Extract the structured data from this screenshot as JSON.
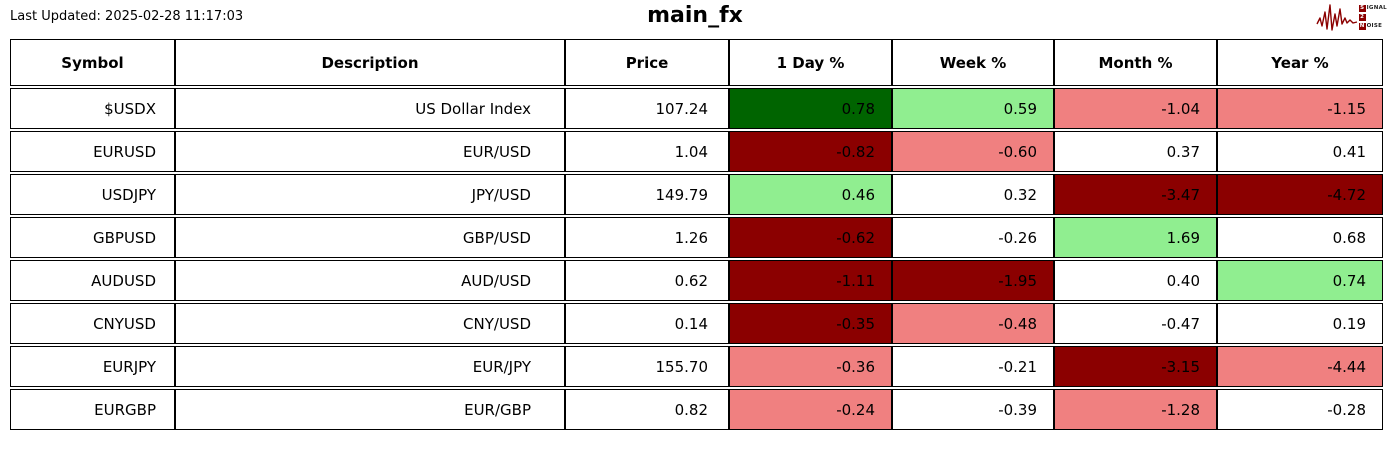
{
  "header": {
    "last_updated": "Last Updated: 2025-02-28 11:17:03",
    "title": "main_fx",
    "logo": {
      "name": "signal-2-noise",
      "color": "#8B0000",
      "lines": [
        {
          "boxed": "S",
          "rest": "IGNAL"
        },
        {
          "boxed": "2",
          "rest": ""
        },
        {
          "boxed": "N",
          "rest": "OISE"
        }
      ]
    }
  },
  "colors": {
    "dg": "#006400",
    "lg": "#90EE90",
    "lc": "#F08080",
    "dr": "#8B0000",
    "w": "#FFFFFF"
  },
  "table": {
    "columns": [
      "Symbol",
      "Description",
      "Price",
      "1 Day %",
      "Week %",
      "Month %",
      "Year %"
    ],
    "rows": [
      {
        "symbol": "$USDX",
        "description": "US Dollar Index",
        "price": "107.24",
        "changes": [
          "0.78",
          "0.59",
          "-1.04",
          "-1.15"
        ],
        "change_colors": [
          "dg",
          "lg",
          "lc",
          "lc"
        ]
      },
      {
        "symbol": "EURUSD",
        "description": "EUR/USD",
        "price": "1.04",
        "changes": [
          "-0.82",
          "-0.60",
          "0.37",
          "0.41"
        ],
        "change_colors": [
          "dr",
          "lc",
          "w",
          "w"
        ]
      },
      {
        "symbol": "USDJPY",
        "description": "JPY/USD",
        "price": "149.79",
        "changes": [
          "0.46",
          "0.32",
          "-3.47",
          "-4.72"
        ],
        "change_colors": [
          "lg",
          "w",
          "dr",
          "dr"
        ]
      },
      {
        "symbol": "GBPUSD",
        "description": "GBP/USD",
        "price": "1.26",
        "changes": [
          "-0.62",
          "-0.26",
          "1.69",
          "0.68"
        ],
        "change_colors": [
          "dr",
          "w",
          "lg",
          "w"
        ]
      },
      {
        "symbol": "AUDUSD",
        "description": "AUD/USD",
        "price": "0.62",
        "changes": [
          "-1.11",
          "-1.95",
          "0.40",
          "0.74"
        ],
        "change_colors": [
          "dr",
          "dr",
          "w",
          "lg"
        ]
      },
      {
        "symbol": "CNYUSD",
        "description": "CNY/USD",
        "price": "0.14",
        "changes": [
          "-0.35",
          "-0.48",
          "-0.47",
          "0.19"
        ],
        "change_colors": [
          "dr",
          "lc",
          "w",
          "w"
        ]
      },
      {
        "symbol": "EURJPY",
        "description": "EUR/JPY",
        "price": "155.70",
        "changes": [
          "-0.36",
          "-0.21",
          "-3.15",
          "-4.44"
        ],
        "change_colors": [
          "lc",
          "w",
          "dr",
          "lc"
        ]
      },
      {
        "symbol": "EURGBP",
        "description": "EUR/GBP",
        "price": "0.82",
        "changes": [
          "-0.24",
          "-0.39",
          "-1.28",
          "-0.28"
        ],
        "change_colors": [
          "lc",
          "w",
          "lc",
          "w"
        ]
      }
    ]
  },
  "chart_data": {
    "type": "table",
    "title": "main_fx",
    "columns": [
      "Symbol",
      "Description",
      "Price",
      "1 Day %",
      "Week %",
      "Month %",
      "Year %"
    ],
    "rows": [
      [
        "$USDX",
        "US Dollar Index",
        107.24,
        0.78,
        0.59,
        -1.04,
        -1.15
      ],
      [
        "EURUSD",
        "EUR/USD",
        1.04,
        -0.82,
        -0.6,
        0.37,
        0.41
      ],
      [
        "USDJPY",
        "JPY/USD",
        149.79,
        0.46,
        0.32,
        -3.47,
        -4.72
      ],
      [
        "GBPUSD",
        "GBP/USD",
        1.26,
        -0.62,
        -0.26,
        1.69,
        0.68
      ],
      [
        "AUDUSD",
        "AUD/USD",
        0.62,
        -1.11,
        -1.95,
        0.4,
        0.74
      ],
      [
        "CNYUSD",
        "CNY/USD",
        0.14,
        -0.35,
        -0.48,
        -0.47,
        0.19
      ],
      [
        "EURJPY",
        "EUR/JPY",
        155.7,
        -0.36,
        -0.21,
        -3.15,
        -4.44
      ],
      [
        "EURGBP",
        "EUR/GBP",
        0.82,
        -0.24,
        -0.39,
        -1.28,
        -0.28
      ]
    ],
    "cell_color_legend": {
      "dg": "strong gain",
      "lg": "gain",
      "w": "neutral",
      "lc": "loss",
      "dr": "strong loss"
    }
  }
}
